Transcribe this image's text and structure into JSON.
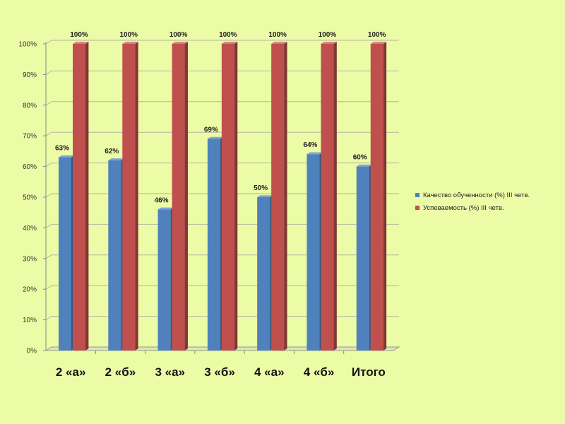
{
  "colors": {
    "background": "#ecfba6",
    "quality": "#4f81bd",
    "progress": "#c0504d"
  },
  "chart_data": {
    "type": "bar",
    "categories": [
      "2 «а»",
      "2 «б»",
      "3 «а»",
      "3 «б»",
      "4 «а»",
      "4 «б»",
      "Итого"
    ],
    "series": [
      {
        "name": "Качество обученности (%) III четв.",
        "values": [
          63,
          62,
          46,
          69,
          50,
          64,
          60
        ],
        "data_labels": [
          "63%",
          "62%",
          "46%",
          "69%",
          "50%",
          "64%",
          "60%"
        ],
        "color": "#4f81bd"
      },
      {
        "name": "Успеваемость (%) III четв.",
        "values": [
          100,
          100,
          100,
          100,
          100,
          100,
          100
        ],
        "data_labels": [
          "100%",
          "100%",
          "100%",
          "100%",
          "100%",
          "100%",
          "100%"
        ],
        "color": "#c0504d"
      }
    ],
    "y_ticks": [
      "0%",
      "10%",
      "20%",
      "30%",
      "40%",
      "50%",
      "60%",
      "70%",
      "80%",
      "90%",
      "100%"
    ],
    "ylim": [
      0,
      100
    ],
    "grid": true,
    "legend_position": "right",
    "three_d": true
  }
}
